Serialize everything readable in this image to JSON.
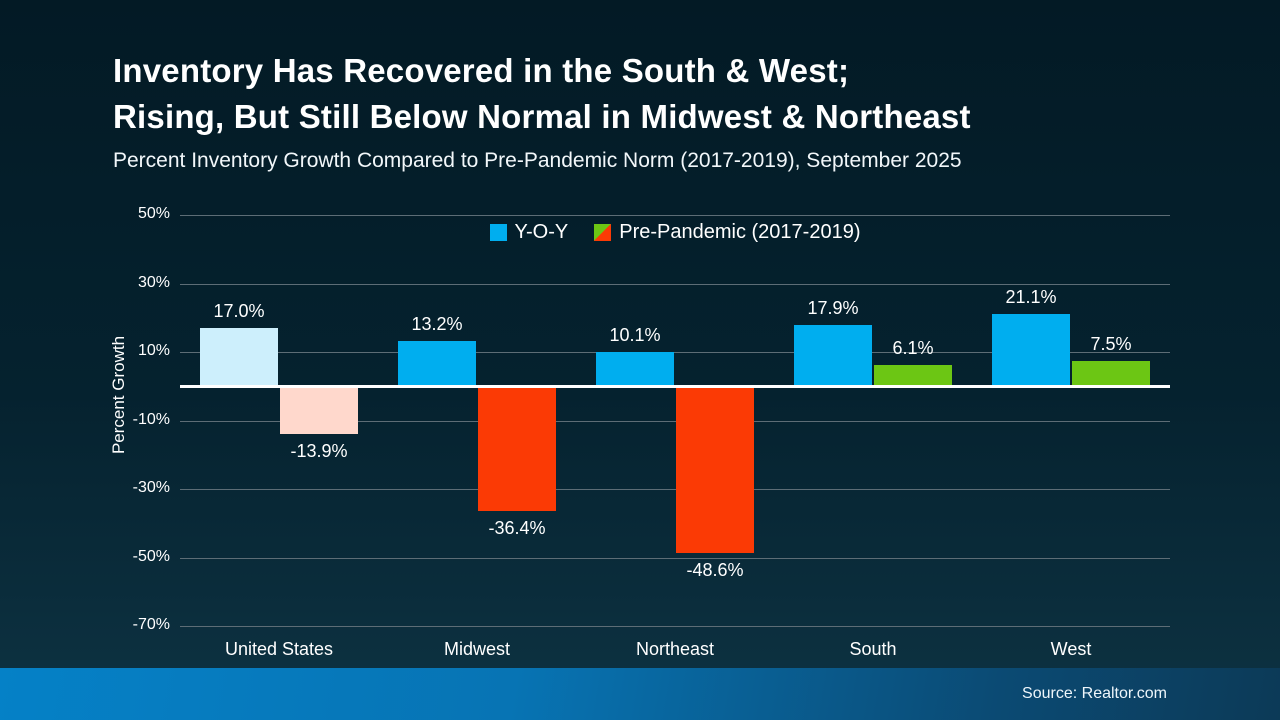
{
  "header": {
    "title_line1": "Inventory Has Recovered in the South & West;",
    "title_line2": "Rising, But Still Below Normal in Midwest & Northeast",
    "subtitle": "Percent Inventory Growth Compared to Pre-Pandemic Norm (2017-2019), September 2025"
  },
  "legend": {
    "items": [
      {
        "label": "Y-O-Y",
        "swatch": "solid",
        "colors": [
          "#00aeef"
        ]
      },
      {
        "label": "Pre-Pandemic (2017-2019)",
        "swatch": "split-diagonal",
        "colors": [
          "#6cc614",
          "#fb3a05"
        ]
      }
    ]
  },
  "chart_data": {
    "type": "bar",
    "title": "Inventory Has Recovered in the South & West; Rising, But Still Below Normal in Midwest & Northeast",
    "subtitle": "Percent Inventory Growth Compared to Pre-Pandemic Norm (2017-2019), September 2025",
    "categories": [
      "United States",
      "Midwest",
      "Northeast",
      "South",
      "West"
    ],
    "series": [
      {
        "name": "Y-O-Y",
        "values": [
          17.0,
          13.2,
          10.1,
          17.9,
          21.1
        ],
        "labels": [
          "17.0%",
          "13.2%",
          "10.1%",
          "17.9%",
          "21.1%"
        ],
        "bar_colors": [
          "#cdeffc",
          "#00aeef",
          "#00aeef",
          "#00aeef",
          "#00aeef"
        ]
      },
      {
        "name": "Pre-Pandemic (2017-2019)",
        "values": [
          -13.9,
          -36.4,
          -48.6,
          6.1,
          7.5
        ],
        "labels": [
          "-13.9%",
          "-36.4%",
          "-48.6%",
          "6.1%",
          "7.5%"
        ],
        "bar_colors": [
          "#ffd8cc",
          "#fb3a05",
          "#fb3a05",
          "#6cc614",
          "#6cc614"
        ]
      }
    ],
    "xlabel": "",
    "ylabel": "Percent Growth",
    "yticks": [
      50,
      30,
      10,
      -10,
      -30,
      -50,
      -70
    ],
    "ytick_labels": [
      "50%",
      "30%",
      "10%",
      "-10%",
      "-30%",
      "-50%",
      "-70%"
    ],
    "ylim": [
      -70,
      50
    ],
    "grid": true,
    "zero_line": true,
    "legend_position": "top-center"
  },
  "footer": {
    "source": "Source: Realtor.com"
  },
  "theme": {
    "background_top": "#031a25",
    "background_bottom": "#0e3343",
    "text_color": "#ffffff",
    "gridline_color": "#5d6d76",
    "accent_blue": "#00aeef",
    "negative_red": "#fb3a05",
    "positive_green": "#6cc614",
    "muted_blue": "#cdeffc",
    "muted_pink": "#ffd8cc",
    "footer_gradient_left": "#0581c7",
    "footer_gradient_right": "#0c3a57"
  }
}
